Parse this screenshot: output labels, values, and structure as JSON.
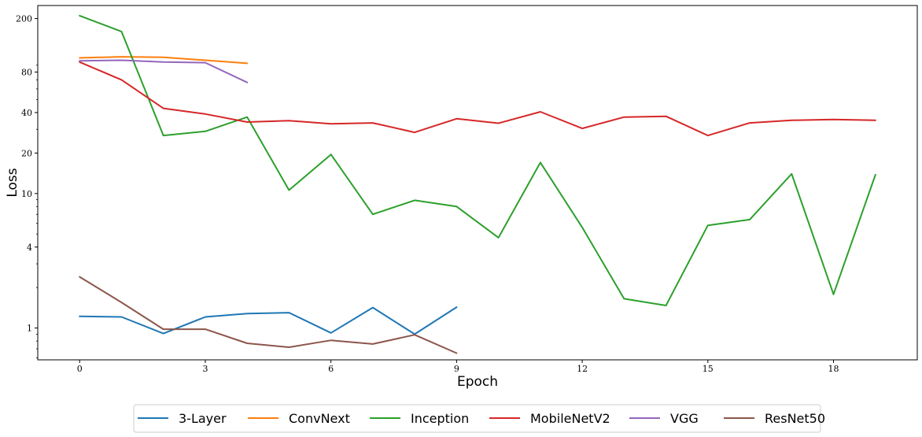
{
  "chart_data": {
    "type": "line",
    "title": "",
    "xlabel": "Epoch",
    "ylabel": "Loss",
    "yscale": "log",
    "xlim": [
      -1,
      20
    ],
    "ylim": [
      0.58,
      250
    ],
    "xticks": [
      0,
      3,
      6,
      9,
      12,
      15,
      18
    ],
    "xtick_labels": [
      "0",
      "3",
      "6",
      "9",
      "12",
      "15",
      "18"
    ],
    "yticks": [
      1,
      4,
      10,
      20,
      40,
      80,
      200
    ],
    "ytick_labels": [
      "1",
      "4",
      "10",
      "20",
      "40",
      "80",
      "200"
    ],
    "grid": false,
    "legend_placement": "bottom-center",
    "series": [
      {
        "name": "3-Layer",
        "color": "#1f77b4",
        "x": [
          0,
          1,
          2,
          3,
          4,
          5,
          6,
          7,
          8,
          9
        ],
        "y": [
          1.22,
          1.21,
          0.91,
          1.21,
          1.28,
          1.3,
          0.92,
          1.42,
          0.9,
          1.43
        ]
      },
      {
        "name": "ConvNext",
        "color": "#ff7f0e",
        "x": [
          0,
          1,
          2,
          3,
          4
        ],
        "y": [
          102,
          104,
          103,
          98,
          93
        ]
      },
      {
        "name": "Inception",
        "color": "#2ca02c",
        "x": [
          0,
          1,
          2,
          3,
          4,
          5,
          6,
          7,
          8,
          9,
          10,
          11,
          12,
          13,
          14,
          15,
          16,
          17,
          18,
          19
        ],
        "y": [
          210,
          160,
          27,
          29,
          37,
          10.6,
          19.5,
          7.0,
          8.9,
          8.0,
          4.7,
          17,
          5.6,
          1.65,
          1.47,
          5.8,
          6.4,
          14,
          1.78,
          13.8
        ]
      },
      {
        "name": "MobileNetV2",
        "color": "#d62728",
        "x": [
          0,
          1,
          2,
          3,
          4,
          5,
          6,
          7,
          8,
          9,
          10,
          11,
          12,
          13,
          14,
          15,
          16,
          17,
          18,
          19
        ],
        "y": [
          95,
          70,
          43,
          39,
          34,
          34.8,
          33,
          33.5,
          28.5,
          36,
          33.3,
          40.5,
          30.5,
          37,
          37.5,
          27,
          33.5,
          35,
          35.5,
          35
        ]
      },
      {
        "name": "VGG",
        "color": "#9467bd",
        "x": [
          0,
          1,
          2,
          3,
          4
        ],
        "y": [
          97,
          98,
          95,
          94,
          67
        ]
      },
      {
        "name": "ResNet50",
        "color": "#8c564b",
        "x": [
          0,
          1,
          2,
          3,
          4,
          5,
          6,
          7,
          8,
          9
        ],
        "y": [
          2.4,
          1.55,
          0.98,
          0.98,
          0.77,
          0.72,
          0.81,
          0.76,
          0.89,
          0.65
        ]
      }
    ]
  }
}
